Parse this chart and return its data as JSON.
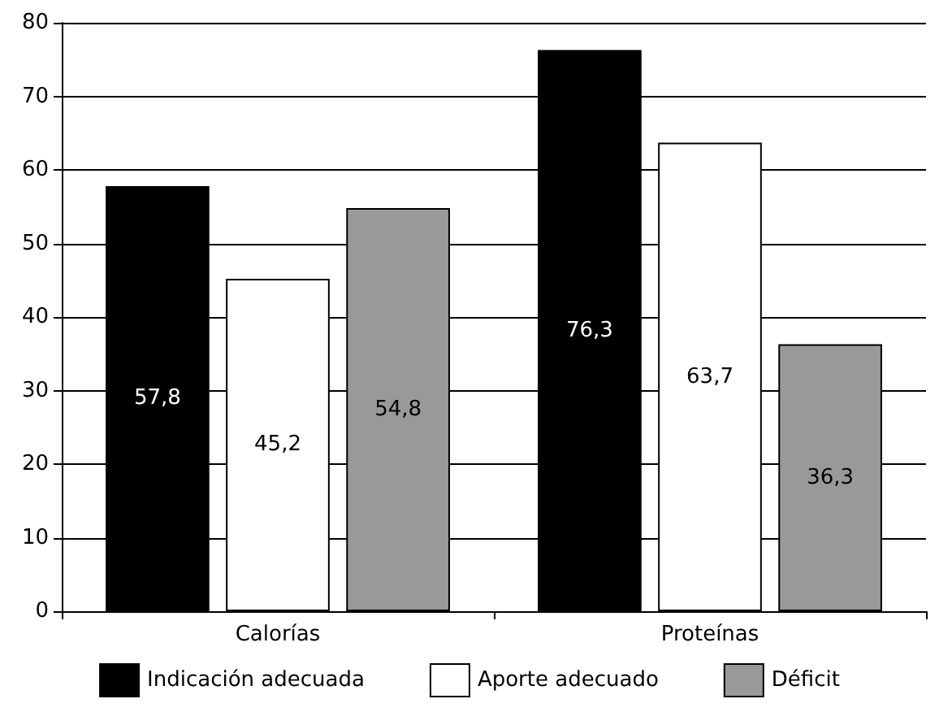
{
  "chart_data": {
    "type": "bar",
    "categories": [
      "Calorías",
      "Proteínas"
    ],
    "series": [
      {
        "name": "Indicación adecuada",
        "color": "#000000",
        "values": [
          57.8,
          76.3
        ],
        "value_labels": [
          "57,8",
          "76,3"
        ]
      },
      {
        "name": "Aporte adecuado",
        "color": "#ffffff",
        "values": [
          45.2,
          63.7
        ],
        "value_labels": [
          "45,2",
          "63,7"
        ]
      },
      {
        "name": "Déficit",
        "color": "#999999",
        "values": [
          54.8,
          36.3
        ],
        "value_labels": [
          "54,8",
          "36,3"
        ]
      }
    ],
    "ylim": [
      0,
      80
    ],
    "yticks": [
      0,
      10,
      20,
      30,
      40,
      50,
      60,
      70,
      80
    ],
    "grid": "y",
    "legend": "bottom"
  }
}
